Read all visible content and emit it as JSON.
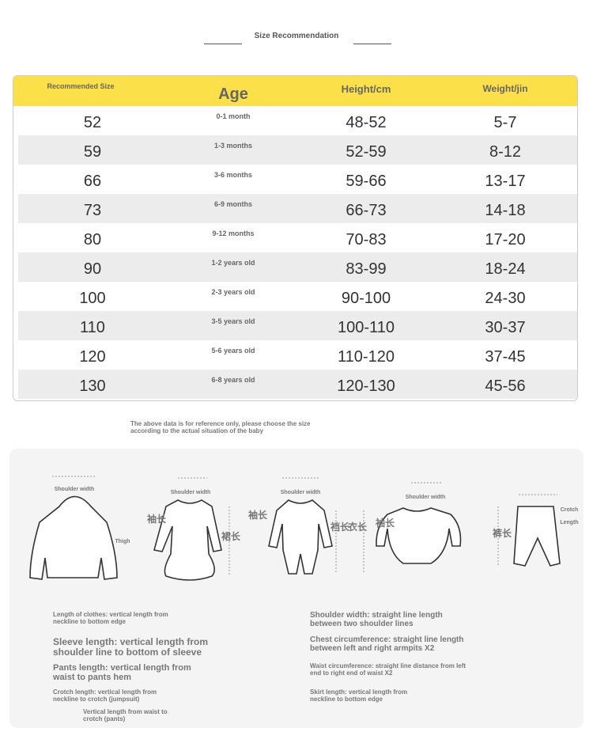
{
  "title": "Size Recommendation",
  "table": {
    "headers": [
      "Recommended Size",
      "Age",
      "Height/cm",
      "Weight/jin"
    ],
    "rows": [
      [
        "52",
        "0-1 month",
        "48-52",
        "5-7"
      ],
      [
        "59",
        "1-3 months",
        "52-59",
        "8-12"
      ],
      [
        "66",
        "3-6 months",
        "59-66",
        "13-17"
      ],
      [
        "73",
        "6-9 months",
        "66-73",
        "14-18"
      ],
      [
        "80",
        "9-12 months",
        "70-83",
        "17-20"
      ],
      [
        "90",
        "1-2 years old",
        "83-99",
        "18-24"
      ],
      [
        "100",
        "2-3 years old",
        "90-100",
        "24-30"
      ],
      [
        "110",
        "3-5 years old",
        "100-110",
        "30-37"
      ],
      [
        "120",
        "5-6 years old",
        "110-120",
        "37-45"
      ],
      [
        "130",
        "6-8 years old",
        "120-130",
        "45-56"
      ]
    ]
  },
  "note": "The above data is for reference only, please choose the size according to the actual situation of the baby",
  "diagram": {
    "labels": [
      "Shoulder width",
      "Thigh",
      "Shoulder width",
      "袖长",
      "裙长",
      "Shoulder width",
      "袖长",
      "衣长",
      "裆长",
      "Shoulder width",
      "袖长",
      "裤长",
      "Crotch",
      "Length"
    ]
  },
  "definitions": [
    "Length of clothes: vertical length from neckline to bottom edge",
    "Sleeve length: vertical length from shoulder line to bottom of sleeve",
    "Pants length: vertical length from waist to pants hem",
    "Crotch length: vertical length from neckline to crotch (jumpsuit)",
    "Vertical length from waist to crotch (pants)",
    "Shoulder width: straight line length between two shoulder lines",
    "Chest circumference: straight line length between left and right armpits X2",
    "Waist circumference: straight line distance from left end to right end of waist X2",
    "Skirt length: vertical length from neckline to bottom edge"
  ]
}
